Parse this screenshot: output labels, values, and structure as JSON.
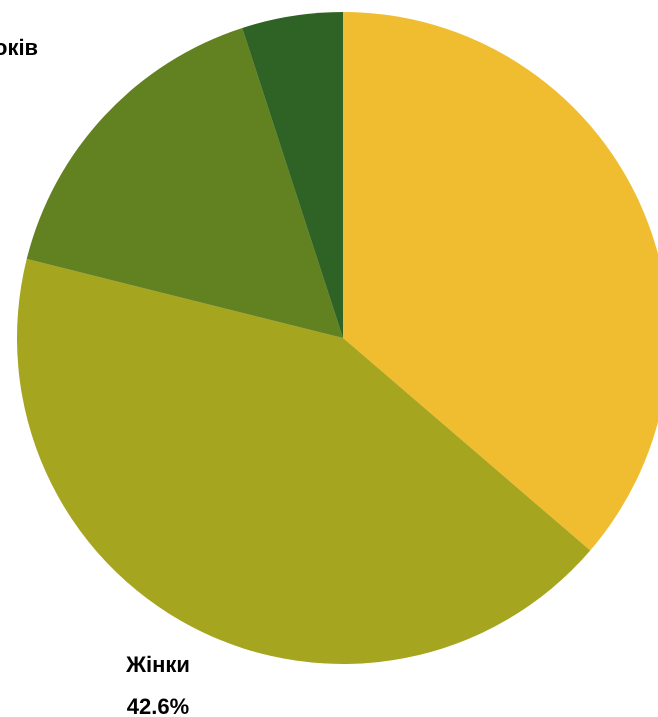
{
  "chart_data": {
    "type": "pie",
    "title": "",
    "start_angle_deg": 0,
    "direction": "clockwise",
    "slices": [
      {
        "name": "",
        "value": 36.3,
        "color": "#EFBD2F"
      },
      {
        "name": "Жінки",
        "value": 42.6,
        "color": "#A5A520",
        "percent_label": "42.6%"
      },
      {
        "name": "",
        "value": 16.1,
        "color": "#628221"
      },
      {
        "name": "…оків",
        "value": 5.0,
        "color": "#2F6325"
      }
    ],
    "labels": {
      "jinky_name": "Жінки",
      "jinky_percent": "42.6%",
      "top_left_fragment": "оків"
    }
  }
}
